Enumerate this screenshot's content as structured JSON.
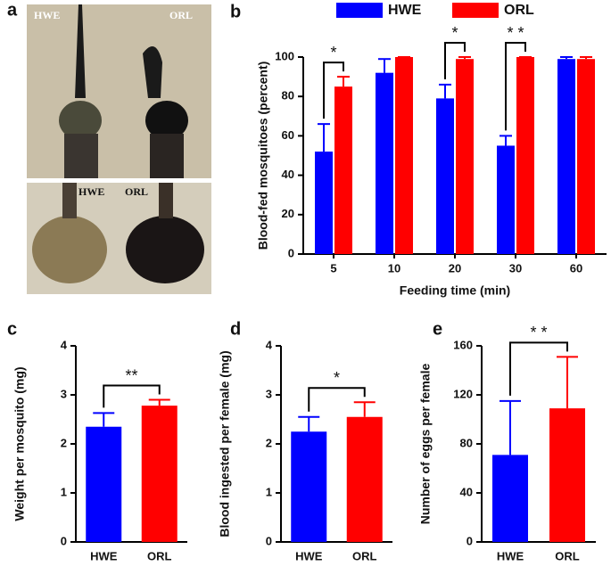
{
  "panel_a": {
    "letter": "a",
    "labels": [
      "HWE",
      "ORL",
      "HWE",
      "ORL"
    ]
  },
  "chart_data": [
    {
      "type": "bar",
      "panel": "b",
      "ylabel": "Blood-fed mosquitoes (percent)",
      "xlabel": "Feeding time (min)",
      "categories": [
        "5",
        "10",
        "20",
        "30",
        "60"
      ],
      "series": [
        {
          "name": "HWE",
          "color": "#0000ff",
          "values": [
            52,
            92,
            79,
            55,
            99
          ],
          "errors": [
            14,
            7,
            7,
            5,
            1
          ]
        },
        {
          "name": "ORL",
          "color": "#ff0000",
          "values": [
            85,
            100,
            99,
            100,
            99
          ],
          "errors": [
            5,
            0,
            1,
            0,
            1
          ]
        }
      ],
      "ylim": [
        0,
        100
      ],
      "yticks": [
        0,
        20,
        40,
        60,
        80,
        100
      ],
      "legend": "top",
      "annotations": [
        {
          "text": "*",
          "category": "5"
        },
        {
          "text": "*",
          "category": "20"
        },
        {
          "text": "* *",
          "category": "30"
        }
      ]
    },
    {
      "type": "bar",
      "panel": "c",
      "ylabel": "Weight per mosquito (mg)",
      "categories": [
        "HWE",
        "ORL"
      ],
      "values": [
        2.35,
        2.78
      ],
      "errors": [
        0.28,
        0.12
      ],
      "colors": [
        "#0000ff",
        "#ff0000"
      ],
      "ylim": [
        0,
        4
      ],
      "yticks": [
        0,
        1,
        2,
        3,
        4
      ],
      "annotation": "**"
    },
    {
      "type": "bar",
      "panel": "d",
      "ylabel": "Blood ingested per female (mg)",
      "categories": [
        "HWE",
        "ORL"
      ],
      "values": [
        2.25,
        2.55
      ],
      "errors": [
        0.3,
        0.3
      ],
      "colors": [
        "#0000ff",
        "#ff0000"
      ],
      "ylim": [
        0,
        4
      ],
      "yticks": [
        0,
        1,
        2,
        3,
        4
      ],
      "annotation": "*"
    },
    {
      "type": "bar",
      "panel": "e",
      "ylabel": "Number of eggs per female",
      "categories": [
        "HWE",
        "ORL"
      ],
      "values": [
        71,
        109
      ],
      "errors": [
        44,
        42
      ],
      "colors": [
        "#0000ff",
        "#ff0000"
      ],
      "ylim": [
        0,
        160
      ],
      "yticks": [
        0,
        40,
        80,
        120,
        160
      ],
      "annotation": "* *"
    }
  ]
}
